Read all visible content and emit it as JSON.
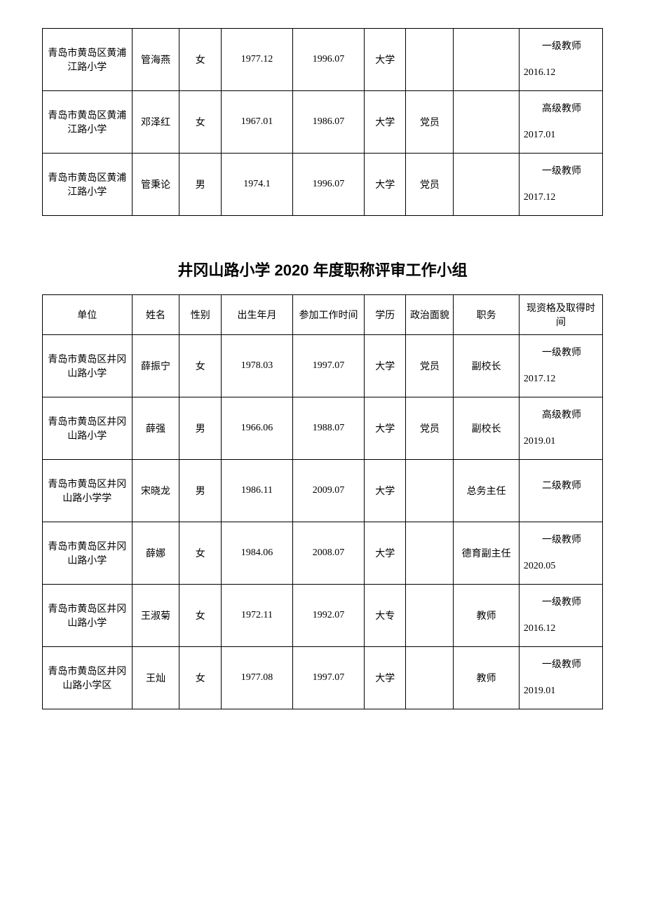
{
  "table1": {
    "rows": [
      {
        "unit": "青岛市黄岛区黄浦江路小学",
        "name": "管海燕",
        "gender": "女",
        "birth": "1977.12",
        "work": "1996.07",
        "edu": "大学",
        "pol": "",
        "pos": "",
        "qual1": "一级教师",
        "qual2": "2016.12"
      },
      {
        "unit": "青岛市黄岛区黄浦江路小学",
        "name": "邓泽红",
        "gender": "女",
        "birth": "1967.01",
        "work": "1986.07",
        "edu": "大学",
        "pol": "党员",
        "pos": "",
        "qual1": "高级教师",
        "qual2": "2017.01"
      },
      {
        "unit": "青岛市黄岛区黄浦江路小学",
        "name": "管秉论",
        "gender": "男",
        "birth": "1974.1",
        "work": "1996.07",
        "edu": "大学",
        "pol": "党员",
        "pos": "",
        "qual1": "一级教师",
        "qual2": "2017.12"
      }
    ]
  },
  "title": "井冈山路小学 2020 年度职称评审工作小组",
  "table2": {
    "headers": {
      "unit": "单位",
      "name": "姓名",
      "gender": "性别",
      "birth": "出生年月",
      "work": "参加工作时间",
      "edu": "学历",
      "pol": "政治面貌",
      "pos": "职务",
      "qual": "现资格及取得时间"
    },
    "rows": [
      {
        "unit": "青岛市黄岛区井冈山路小学",
        "name": "薛振宁",
        "gender": "女",
        "birth": "1978.03",
        "work": "1997.07",
        "edu": "大学",
        "pol": "党员",
        "pos": "副校长",
        "qual1": "一级教师",
        "qual2": "2017.12"
      },
      {
        "unit": "青岛市黄岛区井冈山路小学",
        "name": "薛强",
        "gender": "男",
        "birth": "1966.06",
        "work": "1988.07",
        "edu": "大学",
        "pol": "党员",
        "pos": "副校长",
        "qual1": "高级教师",
        "qual2": "2019.01"
      },
      {
        "unit": "青岛市黄岛区井冈山路小学学",
        "name": "宋晓龙",
        "gender": "男",
        "birth": "1986.11",
        "work": "2009.07",
        "edu": "大学",
        "pol": "",
        "pos": "总务主任",
        "qual1": "二级教师",
        "qual2": ""
      },
      {
        "unit": "青岛市黄岛区井冈山路小学",
        "name": "薛娜",
        "gender": "女",
        "birth": "1984.06",
        "work": "2008.07",
        "edu": "大学",
        "pol": "",
        "pos": "德育副主任",
        "qual1": "一级教师",
        "qual2": "2020.05"
      },
      {
        "unit": "青岛市黄岛区井冈山路小学",
        "name": "王淑菊",
        "gender": "女",
        "birth": "1972.11",
        "work": "1992.07",
        "edu": "大专",
        "pol": "",
        "pos": "教师",
        "qual1": "一级教师",
        "qual2": "2016.12"
      },
      {
        "unit": "青岛市黄岛区井冈山路小学区",
        "name": "王灿",
        "gender": "女",
        "birth": "1977.08",
        "work": "1997.07",
        "edu": "大学",
        "pol": "",
        "pos": "教师",
        "qual1": "一级教师",
        "qual2": "2019.01"
      }
    ]
  }
}
